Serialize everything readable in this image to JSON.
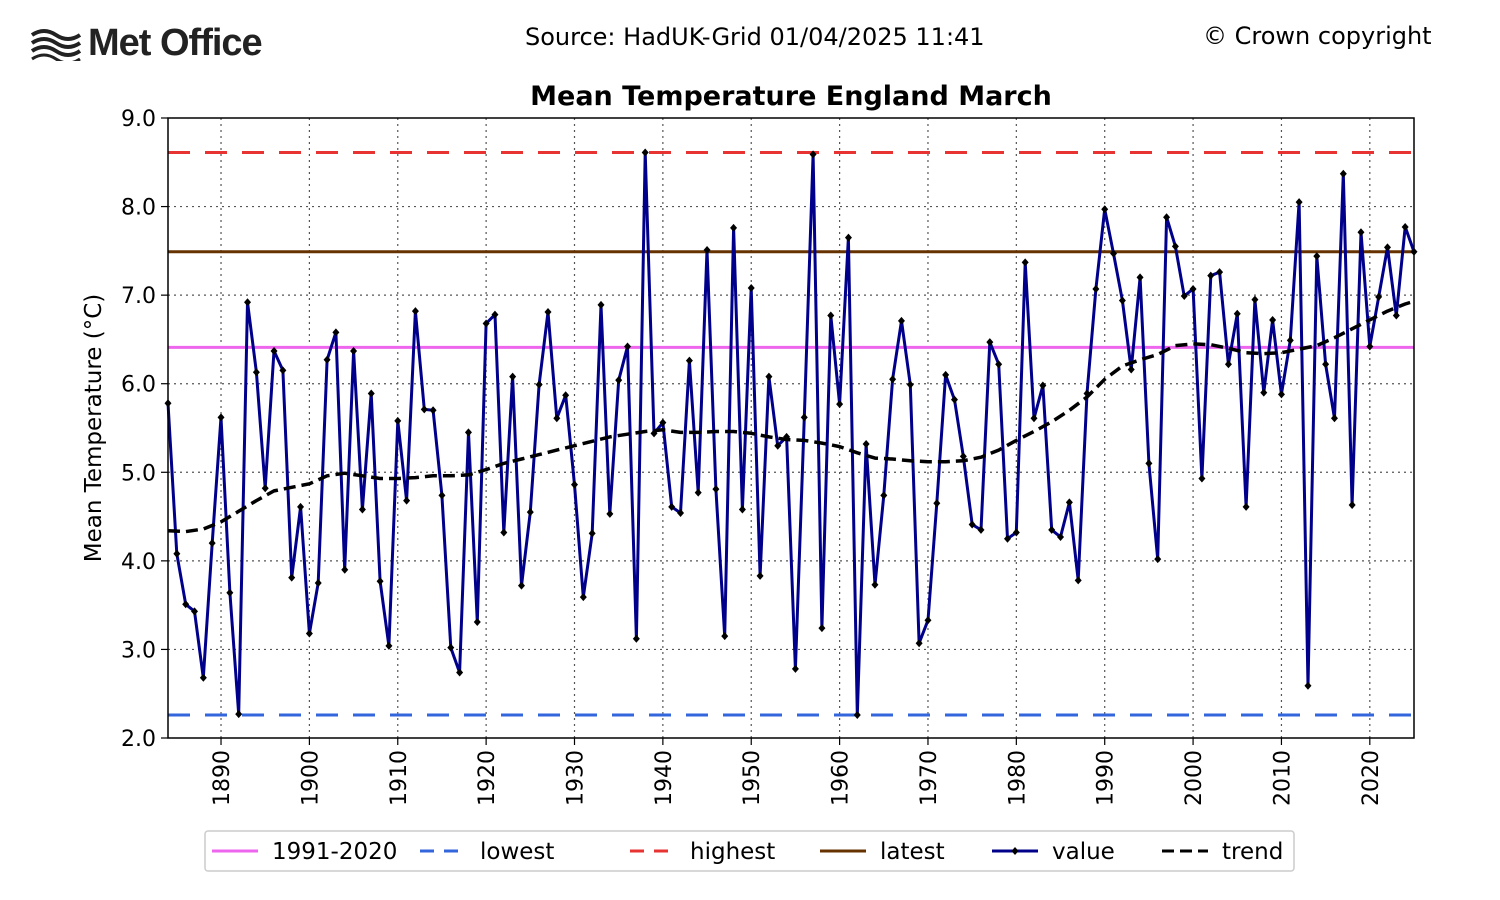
{
  "header": {
    "logo_text": "Met Office",
    "source": "Source: HadUK-Grid 01/04/2025 11:41",
    "copyright": "© Crown copyright"
  },
  "colors": {
    "value": "#00008b",
    "trend": "#000000",
    "baseline": "#ee66ee",
    "lowest": "#3366dd",
    "highest": "#e83333",
    "latest": "#663300",
    "grid": "#555555"
  },
  "chart_data": {
    "type": "line",
    "title": "Mean Temperature England March",
    "xlabel": "",
    "ylabel": "Mean Temperature (°C)",
    "xlim": [
      1884,
      2025
    ],
    "ylim": [
      2.0,
      9.0
    ],
    "x_ticks": [
      1890,
      1900,
      1910,
      1920,
      1930,
      1940,
      1950,
      1960,
      1970,
      1980,
      1990,
      2000,
      2010,
      2020
    ],
    "y_ticks": [
      "2.0",
      "3.0",
      "4.0",
      "5.0",
      "6.0",
      "7.0",
      "8.0",
      "9.0"
    ],
    "grid": true,
    "legend_position": "bottom",
    "reference_lines": {
      "baseline_1991_2020": 6.41,
      "lowest": 2.26,
      "highest": 8.61,
      "latest": 7.49
    },
    "series": [
      {
        "name": "value",
        "x": [
          1884,
          1885,
          1886,
          1887,
          1888,
          1889,
          1890,
          1891,
          1892,
          1893,
          1894,
          1895,
          1896,
          1897,
          1898,
          1899,
          1900,
          1901,
          1902,
          1903,
          1904,
          1905,
          1906,
          1907,
          1908,
          1909,
          1910,
          1911,
          1912,
          1913,
          1914,
          1915,
          1916,
          1917,
          1918,
          1919,
          1920,
          1921,
          1922,
          1923,
          1924,
          1925,
          1926,
          1927,
          1928,
          1929,
          1930,
          1931,
          1932,
          1933,
          1934,
          1935,
          1936,
          1937,
          1938,
          1939,
          1940,
          1941,
          1942,
          1943,
          1944,
          1945,
          1946,
          1947,
          1948,
          1949,
          1950,
          1951,
          1952,
          1953,
          1954,
          1955,
          1956,
          1957,
          1958,
          1959,
          1960,
          1961,
          1962,
          1963,
          1964,
          1965,
          1966,
          1967,
          1968,
          1969,
          1970,
          1971,
          1972,
          1973,
          1974,
          1975,
          1976,
          1977,
          1978,
          1979,
          1980,
          1981,
          1982,
          1983,
          1984,
          1985,
          1986,
          1987,
          1988,
          1989,
          1990,
          1991,
          1992,
          1993,
          1994,
          1995,
          1996,
          1997,
          1998,
          1999,
          2000,
          2001,
          2002,
          2003,
          2004,
          2005,
          2006,
          2007,
          2008,
          2009,
          2010,
          2011,
          2012,
          2013,
          2014,
          2015,
          2016,
          2017,
          2018,
          2019,
          2020,
          2021,
          2022,
          2023,
          2024,
          2025
        ],
        "values": [
          5.78,
          4.08,
          3.51,
          3.43,
          2.68,
          4.2,
          5.62,
          3.64,
          2.27,
          6.92,
          6.13,
          4.82,
          6.37,
          6.15,
          3.81,
          4.61,
          3.18,
          3.75,
          6.27,
          6.58,
          3.9,
          6.37,
          4.58,
          5.89,
          3.77,
          3.04,
          5.58,
          4.68,
          6.82,
          5.71,
          5.7,
          4.74,
          3.02,
          2.74,
          5.45,
          3.31,
          6.68,
          6.78,
          4.32,
          6.08,
          3.72,
          4.55,
          5.99,
          6.81,
          5.61,
          5.87,
          4.86,
          3.59,
          4.31,
          6.89,
          4.53,
          6.04,
          6.42,
          3.12,
          8.61,
          5.44,
          5.56,
          4.61,
          4.54,
          6.26,
          4.77,
          7.51,
          4.81,
          3.15,
          7.76,
          4.58,
          7.08,
          3.83,
          6.08,
          5.3,
          5.4,
          2.78,
          5.62,
          8.59,
          3.24,
          6.77,
          5.77,
          7.65,
          2.26,
          5.32,
          3.73,
          4.74,
          6.05,
          6.71,
          5.99,
          3.07,
          3.33,
          4.65,
          6.1,
          5.82,
          5.18,
          4.41,
          4.35,
          6.47,
          6.22,
          4.25,
          4.32,
          7.37,
          5.61,
          5.98,
          4.35,
          4.27,
          4.66,
          3.78,
          5.89,
          7.07,
          7.97,
          7.47,
          6.94,
          6.16,
          7.2,
          5.1,
          4.02,
          7.88,
          7.55,
          6.99,
          7.07,
          4.93,
          7.22,
          7.26,
          6.22,
          6.79,
          4.61,
          6.95,
          5.9,
          6.72,
          5.88,
          6.49,
          8.05,
          2.59,
          7.44,
          6.22,
          5.61,
          8.37,
          4.63,
          7.71,
          6.42,
          6.98,
          7.54,
          6.77,
          7.77,
          7.49
        ]
      },
      {
        "name": "trend",
        "x": [
          1884,
          1886,
          1888,
          1890,
          1892,
          1894,
          1896,
          1898,
          1900,
          1902,
          1904,
          1906,
          1908,
          1910,
          1912,
          1914,
          1916,
          1918,
          1920,
          1922,
          1924,
          1926,
          1928,
          1930,
          1932,
          1934,
          1936,
          1938,
          1940,
          1942,
          1944,
          1946,
          1948,
          1950,
          1952,
          1954,
          1956,
          1958,
          1960,
          1962,
          1964,
          1966,
          1968,
          1970,
          1972,
          1974,
          1976,
          1978,
          1980,
          1982,
          1984,
          1986,
          1988,
          1990,
          1992,
          1994,
          1996,
          1998,
          2000,
          2002,
          2004,
          2006,
          2008,
          2010,
          2012,
          2014,
          2016,
          2018,
          2020,
          2022,
          2024,
          2025
        ],
        "values": [
          4.34,
          4.33,
          4.36,
          4.44,
          4.56,
          4.68,
          4.79,
          4.83,
          4.87,
          4.96,
          4.99,
          4.96,
          4.93,
          4.93,
          4.94,
          4.96,
          4.96,
          4.97,
          5.03,
          5.1,
          5.15,
          5.2,
          5.25,
          5.3,
          5.35,
          5.4,
          5.43,
          5.46,
          5.48,
          5.45,
          5.45,
          5.46,
          5.46,
          5.44,
          5.4,
          5.37,
          5.36,
          5.33,
          5.29,
          5.22,
          5.16,
          5.15,
          5.13,
          5.12,
          5.12,
          5.13,
          5.17,
          5.25,
          5.36,
          5.46,
          5.57,
          5.7,
          5.85,
          6.05,
          6.2,
          6.27,
          6.33,
          6.43,
          6.45,
          6.44,
          6.4,
          6.35,
          6.34,
          6.35,
          6.39,
          6.43,
          6.52,
          6.62,
          6.72,
          6.82,
          6.9,
          6.93
        ]
      }
    ],
    "legend": [
      "1991-2020",
      "lowest",
      "highest",
      "latest",
      "value",
      "trend"
    ]
  }
}
